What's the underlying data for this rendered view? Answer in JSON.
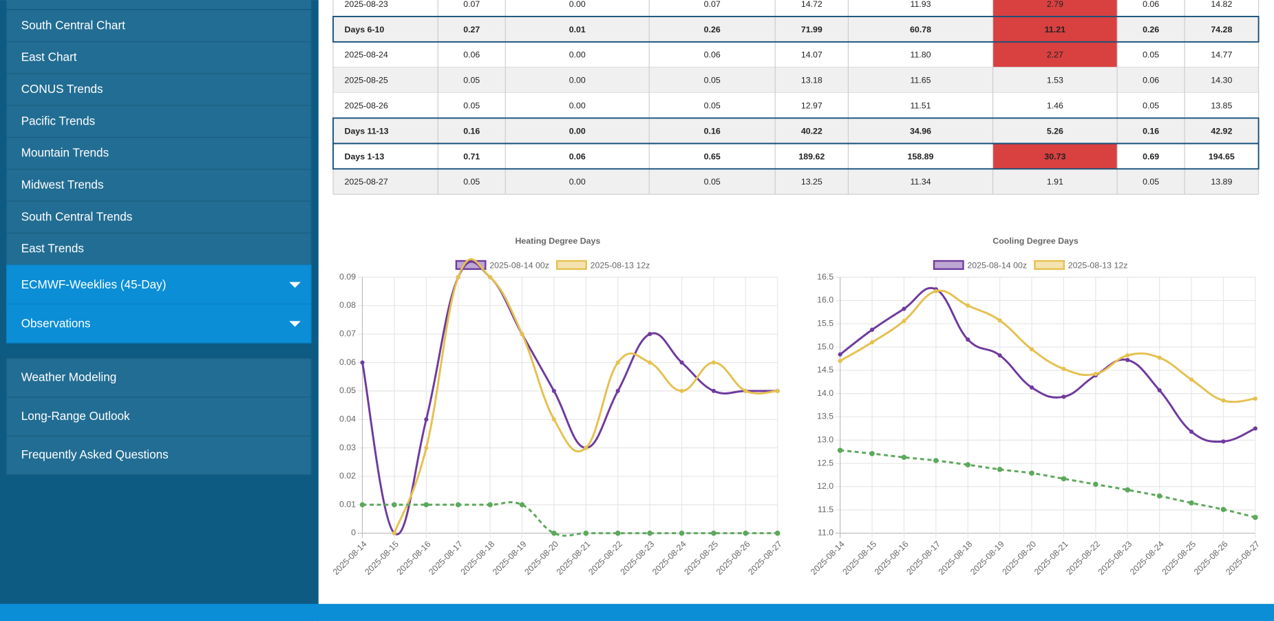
{
  "sidebar": {
    "items": [
      "South Central Chart",
      "East Chart",
      "CONUS Trends",
      "Pacific Trends",
      "Mountain Trends",
      "Midwest Trends",
      "South Central Trends",
      "East Trends"
    ],
    "dropdowns": [
      "ECMWF-Weeklies (45-Day)",
      "Observations"
    ],
    "links": [
      "Weather Modeling",
      "Long-Range Outlook",
      "Frequently Asked Questions"
    ]
  },
  "table": {
    "rows": [
      {
        "cells": [
          "2025-08-23",
          "0.07",
          "0.00",
          "0.07",
          "14.72",
          "11.93",
          "2.79",
          "0.06",
          "14.82"
        ],
        "summary": false,
        "highlight": true
      },
      {
        "cells": [
          "Days 6-10",
          "0.27",
          "0.01",
          "0.26",
          "71.99",
          "60.78",
          "11.21",
          "0.26",
          "74.28"
        ],
        "summary": true,
        "highlight": true
      },
      {
        "cells": [
          "2025-08-24",
          "0.06",
          "0.00",
          "0.06",
          "14.07",
          "11.80",
          "2.27",
          "0.05",
          "14.77"
        ],
        "summary": false,
        "highlight": true
      },
      {
        "cells": [
          "2025-08-25",
          "0.05",
          "0.00",
          "0.05",
          "13.18",
          "11.65",
          "1.53",
          "0.06",
          "14.30"
        ],
        "summary": false,
        "highlight": false
      },
      {
        "cells": [
          "2025-08-26",
          "0.05",
          "0.00",
          "0.05",
          "12.97",
          "11.51",
          "1.46",
          "0.05",
          "13.85"
        ],
        "summary": false,
        "highlight": false
      },
      {
        "cells": [
          "Days 11-13",
          "0.16",
          "0.00",
          "0.16",
          "40.22",
          "34.96",
          "5.26",
          "0.16",
          "42.92"
        ],
        "summary": true,
        "highlight": false
      },
      {
        "cells": [
          "Days 1-13",
          "0.71",
          "0.06",
          "0.65",
          "189.62",
          "158.89",
          "30.73",
          "0.69",
          "194.65"
        ],
        "summary": true,
        "highlight": true
      },
      {
        "cells": [
          "2025-08-27",
          "0.05",
          "0.00",
          "0.05",
          "13.25",
          "11.34",
          "1.91",
          "0.05",
          "13.89"
        ],
        "summary": false,
        "highlight": false
      }
    ]
  },
  "charts": [
    {
      "type": "line",
      "title": "Heating Degree Days",
      "categories": [
        "2025-08-14",
        "2025-08-15",
        "2025-08-16",
        "2025-08-17",
        "2025-08-18",
        "2025-08-19",
        "2025-08-20",
        "2025-08-21",
        "2025-08-22",
        "2025-08-23",
        "2025-08-24",
        "2025-08-25",
        "2025-08-26",
        "2025-08-27"
      ],
      "ylim": [
        0,
        0.09
      ],
      "yticks": [
        0,
        0.01,
        0.02,
        0.03,
        0.04,
        0.05,
        0.06,
        0.07,
        0.08,
        0.09
      ],
      "grid": true,
      "series": [
        {
          "name": "2025-08-14 00z",
          "color": "#6f3a9e",
          "values": [
            0.06,
            0,
            0.04,
            0.09,
            0.09,
            0.07,
            0.05,
            0.03,
            0.05,
            0.07,
            0.06,
            0.05,
            0.05,
            0.05
          ]
        },
        {
          "name": "2025-08-13 12z",
          "color": "#e6c04f",
          "values": [
            null,
            0,
            0.03,
            0.09,
            0.09,
            0.07,
            0.04,
            0.03,
            0.06,
            0.06,
            0.05,
            0.06,
            0.05,
            0.05
          ]
        },
        {
          "color": "#5ca85c",
          "dashed": true,
          "values": [
            0.01,
            0.01,
            0.01,
            0.01,
            0.01,
            0.01,
            0,
            0,
            0,
            0,
            0,
            0,
            0,
            0
          ]
        }
      ]
    },
    {
      "type": "line",
      "title": "Cooling Degree Days",
      "categories": [
        "2025-08-14",
        "2025-08-15",
        "2025-08-16",
        "2025-08-17",
        "2025-08-18",
        "2025-08-19",
        "2025-08-20",
        "2025-08-21",
        "2025-08-22",
        "2025-08-23",
        "2025-08-24",
        "2025-08-25",
        "2025-08-26",
        "2025-08-27"
      ],
      "ylim": [
        11,
        16.5
      ],
      "yticks": [
        {
          "value": 11,
          "label": "11.0"
        },
        {
          "value": 11.5,
          "label": "11.5"
        },
        {
          "value": 12,
          "label": "12.0"
        },
        {
          "value": 12.5,
          "label": "12.5"
        },
        {
          "value": 13,
          "label": "13.0"
        },
        {
          "value": 13.5,
          "label": "13.5"
        },
        {
          "value": 14,
          "label": "14.0"
        },
        {
          "value": 14.5,
          "label": "14.5"
        },
        {
          "value": 15,
          "label": "15.0"
        },
        {
          "value": 15.5,
          "label": "15.5"
        },
        {
          "value": 16,
          "label": "16.0"
        },
        {
          "value": 16.5,
          "label": "16.5"
        }
      ],
      "grid": true,
      "series": [
        {
          "name": "2025-08-14 00z",
          "color": "#6f3a9e",
          "values": [
            14.84,
            15.37,
            15.82,
            16.24,
            15.16,
            14.82,
            14.13,
            13.93,
            14.39,
            14.72,
            14.07,
            13.18,
            12.97,
            13.25
          ]
        },
        {
          "name": "2025-08-13 12z",
          "color": "#e6c04f",
          "values": [
            14.7,
            15.1,
            15.56,
            16.2,
            15.89,
            15.57,
            14.95,
            14.53,
            14.42,
            14.82,
            14.77,
            14.3,
            13.85,
            13.89
          ]
        },
        {
          "color": "#5ca85c",
          "dashed": true,
          "values": [
            12.78,
            12.71,
            12.63,
            12.56,
            12.47,
            12.37,
            12.29,
            12.17,
            12.05,
            11.93,
            11.8,
            11.65,
            11.51,
            11.34
          ]
        }
      ]
    }
  ]
}
